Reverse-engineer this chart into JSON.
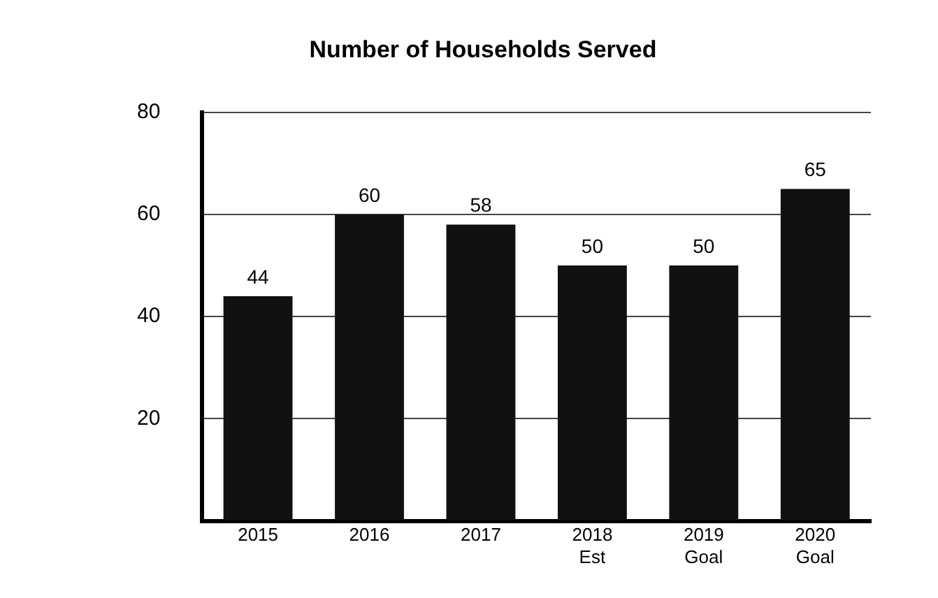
{
  "chart_data": {
    "type": "bar",
    "title": "Number of Households Served",
    "categories": [
      "2015",
      "2016",
      "2017",
      "2018 Est",
      "2019 Goal",
      "2020 Goal"
    ],
    "values": [
      44,
      60,
      58,
      50,
      50,
      65
    ],
    "color": "#111111",
    "ylim": [
      0,
      80
    ],
    "yticks": [
      {
        "value": 0,
        "label": null
      },
      20,
      40,
      60,
      80
    ],
    "grid": "y",
    "data_labels": true
  }
}
